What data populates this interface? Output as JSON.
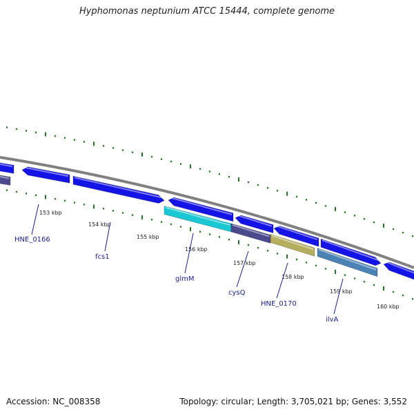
{
  "title": "Hyphomonas neptunium ATCC 15444, complete genome",
  "accession": "Accession: NC_008358",
  "summary": "Topology: circular; Length: 3,705,021 bp; Genes: 3,552",
  "colors": {
    "backbone": "#808080",
    "gene_blue": "#1414e6",
    "gene_cyan": "#19c8d2",
    "gene_slate": "#4a4a8c",
    "gene_khaki": "#b4ae5e",
    "gene_steel": "#4a82b4",
    "tick_green": "#1f7a1f",
    "label_blue": "#1a1a99"
  },
  "scale_labels": [
    "153 kbp",
    "154 kbp",
    "155 kbp",
    "156 kbp",
    "157 kbp",
    "158 kbp",
    "159 kbp",
    "160 kbp"
  ],
  "gene_labels": [
    "HNE_0166",
    "fcs1",
    "glmM",
    "cysQ",
    "HNE_0170",
    "ilvA"
  ]
}
